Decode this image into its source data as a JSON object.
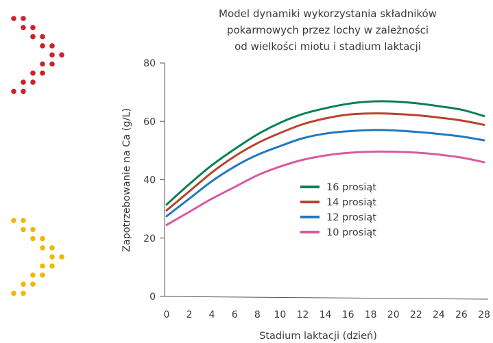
{
  "chart_data": {
    "type": "line",
    "title": [
      "Model dynamiki wykorzystania składników",
      "pokarmowych przez lochy w zależności",
      "od wielkości miotu i stadium laktacji"
    ],
    "xlabel": "Stadium laktacji (dzień)",
    "ylabel": "Zapotrzebowanie na Ca (g/L)",
    "xlim": [
      0,
      28
    ],
    "ylim": [
      0,
      80
    ],
    "x_ticks": [
      0,
      2,
      4,
      6,
      8,
      10,
      12,
      14,
      16,
      18,
      20,
      22,
      24,
      26,
      28
    ],
    "y_ticks": [
      0,
      20,
      40,
      60,
      80
    ],
    "x": [
      0,
      2,
      4,
      6,
      8,
      10,
      12,
      14,
      16,
      18,
      20,
      22,
      24,
      26,
      28
    ],
    "series": [
      {
        "name": "16 prosiąt",
        "color": "#0b7f55",
        "values": [
          31.5,
          38.5,
          45,
          50.5,
          55.5,
          59.5,
          62.5,
          64.5,
          66,
          66.8,
          66.8,
          66.2,
          65.2,
          64,
          61.8
        ]
      },
      {
        "name": "14 prosiąt",
        "color": "#b8432a",
        "values": [
          29.5,
          36,
          42.5,
          48,
          52.5,
          56,
          59,
          61,
          62.3,
          62.7,
          62.6,
          62.1,
          61.3,
          60.3,
          58.8
        ]
      },
      {
        "name": "12 prosiąt",
        "color": "#1f78c1",
        "values": [
          27.5,
          33.5,
          39.5,
          44.5,
          48.5,
          51.5,
          54.2,
          55.8,
          56.6,
          57,
          56.9,
          56.4,
          55.7,
          54.8,
          53.5
        ]
      },
      {
        "name": "10 prosiąt",
        "color": "#d85aa0",
        "values": [
          24.5,
          29,
          33.5,
          37.5,
          41.5,
          44.5,
          46.8,
          48.3,
          49.2,
          49.6,
          49.6,
          49.3,
          48.6,
          47.6,
          46
        ]
      }
    ],
    "legend_position": "center-right",
    "grid": false
  },
  "decoration": {
    "top_dots_color": "#d0202a",
    "bottom_dots_color": "#f0b800"
  }
}
